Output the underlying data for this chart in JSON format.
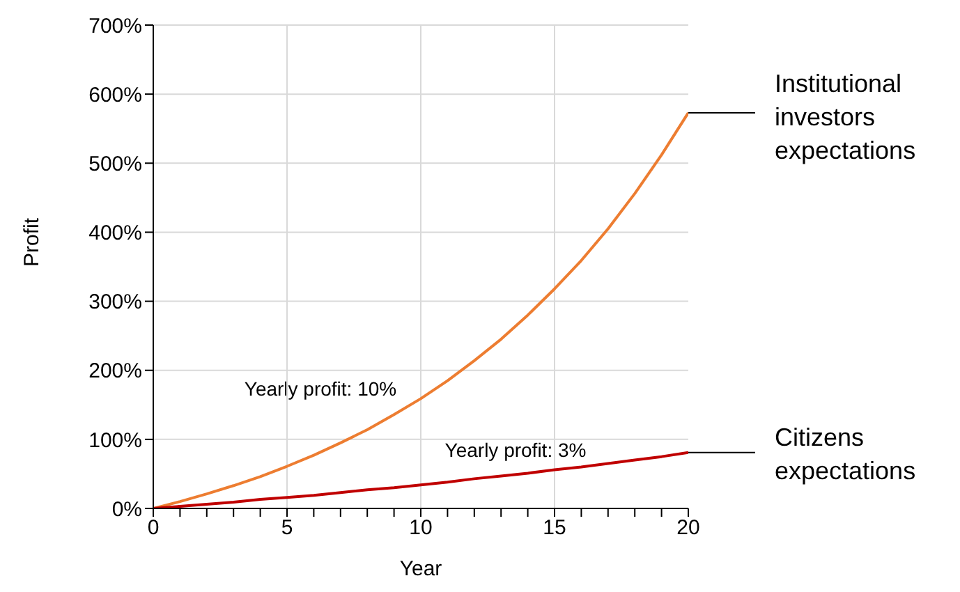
{
  "chart_data": {
    "type": "line",
    "xlabel": "Year",
    "ylabel": "Profit",
    "x": [
      0,
      1,
      2,
      3,
      4,
      5,
      6,
      7,
      8,
      9,
      10,
      11,
      12,
      13,
      14,
      15,
      16,
      17,
      18,
      19,
      20
    ],
    "series": [
      {
        "name": "Institutional investors expectations",
        "color": "#ed7d31",
        "values": [
          0,
          10,
          21,
          33,
          46,
          61,
          77,
          95,
          114,
          136,
          159,
          185,
          214,
          245,
          280,
          318,
          359,
          405,
          456,
          512,
          573
        ]
      },
      {
        "name": "Citizens expectations",
        "color": "#c00000",
        "values": [
          0,
          3,
          6,
          9,
          13,
          16,
          19,
          23,
          27,
          30,
          34,
          38,
          43,
          47,
          51,
          56,
          60,
          65,
          70,
          75,
          81
        ]
      }
    ],
    "xlim": [
      0,
      20
    ],
    "xticks": [
      0,
      {
        "value": 1,
        "label": null
      },
      {
        "value": 2,
        "label": null
      },
      {
        "value": 3,
        "label": null
      },
      {
        "value": 4,
        "label": null
      },
      5,
      {
        "value": 6,
        "label": null
      },
      {
        "value": 7,
        "label": null
      },
      {
        "value": 8,
        "label": null
      },
      {
        "value": 9,
        "label": null
      },
      10,
      {
        "value": 11,
        "label": null
      },
      {
        "value": 12,
        "label": null
      },
      {
        "value": 13,
        "label": null
      },
      {
        "value": 14,
        "label": null
      },
      15,
      {
        "value": 16,
        "label": null
      },
      {
        "value": 17,
        "label": null
      },
      {
        "value": 18,
        "label": null
      },
      {
        "value": 19,
        "label": null
      },
      20
    ],
    "ylim": [
      0,
      700
    ],
    "yticks": [
      {
        "value": 0,
        "label": "0%"
      },
      {
        "value": 100,
        "label": "100%"
      },
      {
        "value": 200,
        "label": "200%"
      },
      {
        "value": 300,
        "label": "300%"
      },
      {
        "value": 400,
        "label": "400%"
      },
      {
        "value": 500,
        "label": "500%"
      },
      {
        "value": 600,
        "label": "600%"
      },
      {
        "value": 700,
        "label": "700%"
      }
    ],
    "grid": true,
    "marker": "none",
    "line_style": "solid",
    "annotations": [
      "Yearly profit: 10%",
      "Yearly profit: 3%"
    ]
  }
}
